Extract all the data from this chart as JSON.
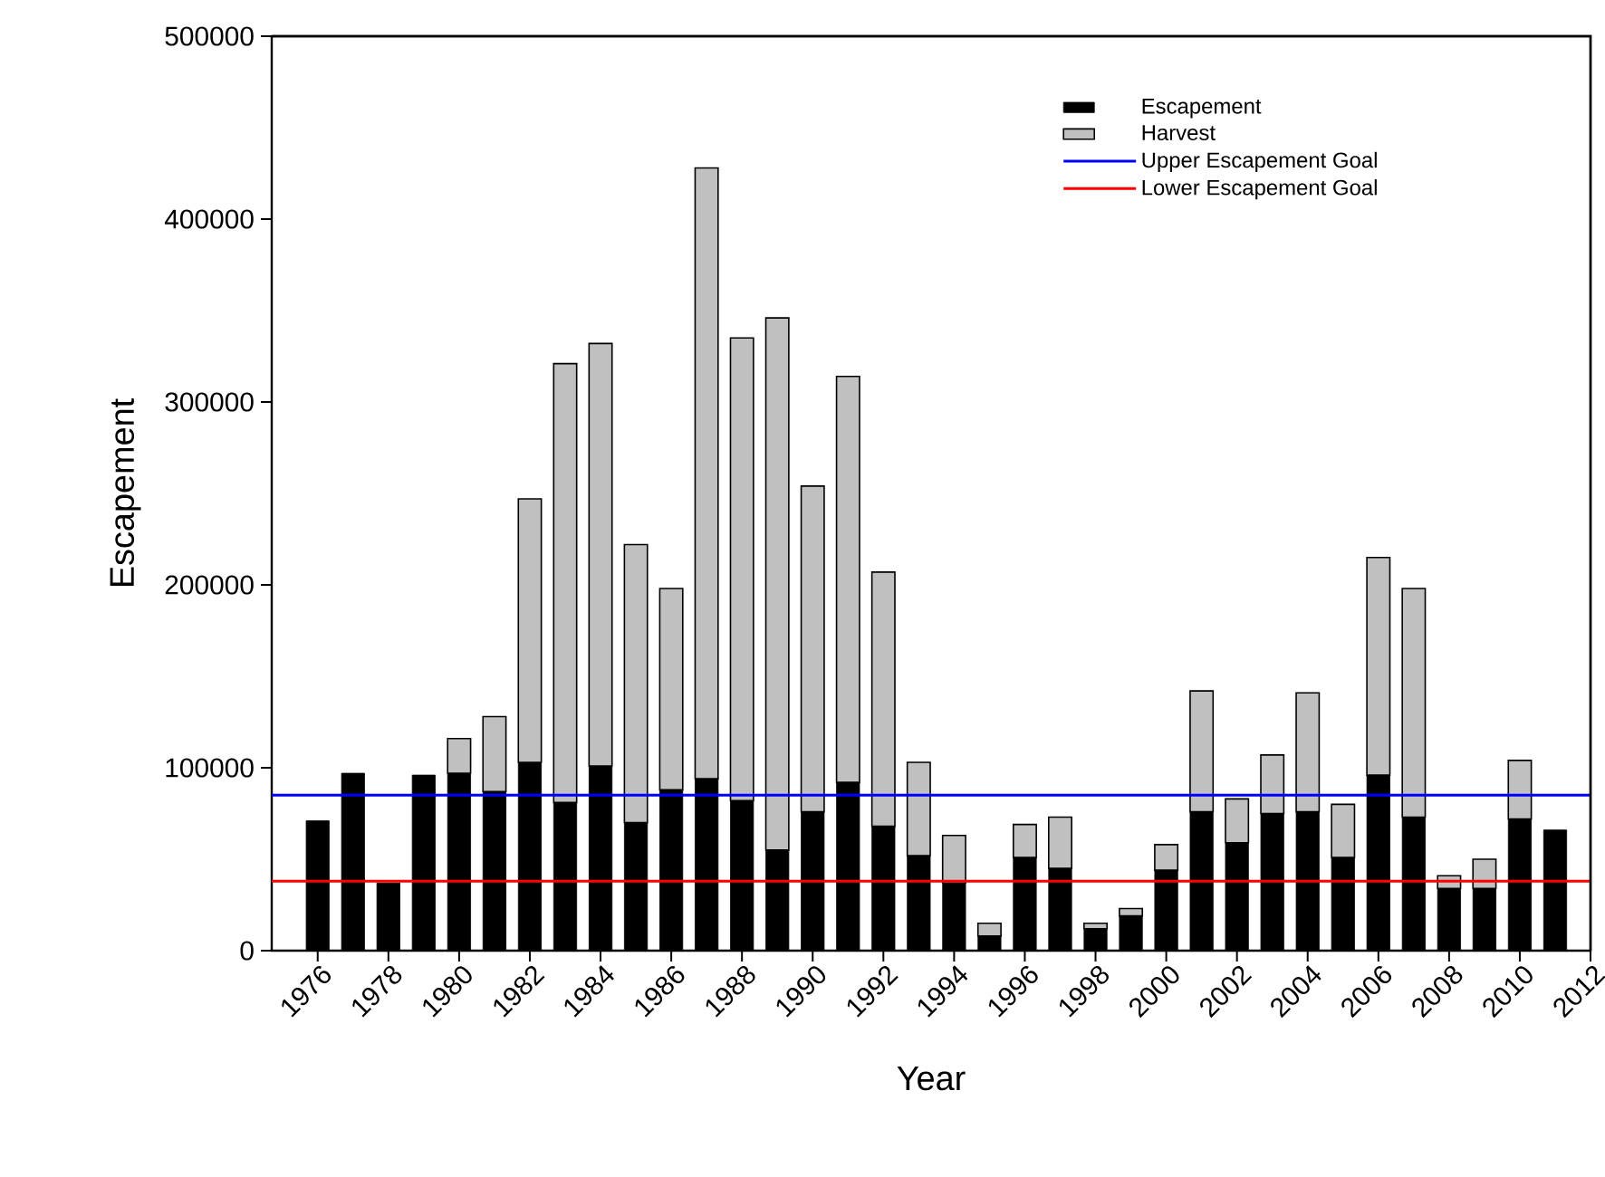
{
  "chart_data": {
    "type": "bar",
    "stacked": true,
    "xlabel": "Year",
    "ylabel": "Escapement",
    "x": [
      1976,
      1977,
      1978,
      1979,
      1980,
      1981,
      1982,
      1983,
      1984,
      1985,
      1986,
      1987,
      1988,
      1989,
      1990,
      1991,
      1992,
      1993,
      1994,
      1995,
      1996,
      1997,
      1998,
      1999,
      2000,
      2001,
      2002,
      2003,
      2004,
      2005,
      2006,
      2007,
      2008,
      2009,
      2010,
      2011
    ],
    "series": [
      {
        "name": "Escapement",
        "color": "#000000",
        "values": [
          71000,
          97000,
          37000,
          96000,
          97000,
          87000,
          103000,
          81000,
          101000,
          70000,
          88000,
          94000,
          82000,
          55000,
          76000,
          92000,
          68000,
          52000,
          37000,
          8000,
          51000,
          45000,
          12000,
          19000,
          44000,
          76000,
          59000,
          75000,
          76000,
          51000,
          96000,
          73000,
          34000,
          34000,
          72000,
          66000
        ]
      },
      {
        "name": "Harvest",
        "color": "#c0c0c0",
        "values": [
          null,
          null,
          null,
          null,
          19000,
          41000,
          144000,
          240000,
          231000,
          152000,
          110000,
          334000,
          253000,
          291000,
          178000,
          222000,
          139000,
          51000,
          26000,
          7000,
          18000,
          28000,
          3000,
          4000,
          14000,
          66000,
          24000,
          32000,
          65000,
          29000,
          119000,
          125000,
          7000,
          16000,
          32000,
          null
        ]
      }
    ],
    "ref_lines": [
      {
        "axis": "y",
        "value": 85000,
        "label": "Upper Escapement Goal",
        "color": "#0000ff"
      },
      {
        "axis": "y",
        "value": 38000,
        "label": "Lower Escapement Goal",
        "color": "#ff0000"
      }
    ],
    "xlim": [
      1974.7,
      2012
    ],
    "ylim": [
      0,
      500000
    ],
    "xticks": [
      1976,
      1978,
      1980,
      1982,
      1984,
      1986,
      1988,
      1990,
      1992,
      1994,
      1996,
      1998,
      2000,
      2002,
      2004,
      2006,
      2008,
      2010,
      2012
    ],
    "yticks": [
      0,
      100000,
      200000,
      300000,
      400000,
      500000
    ],
    "legend": "top right",
    "grid": false
  }
}
